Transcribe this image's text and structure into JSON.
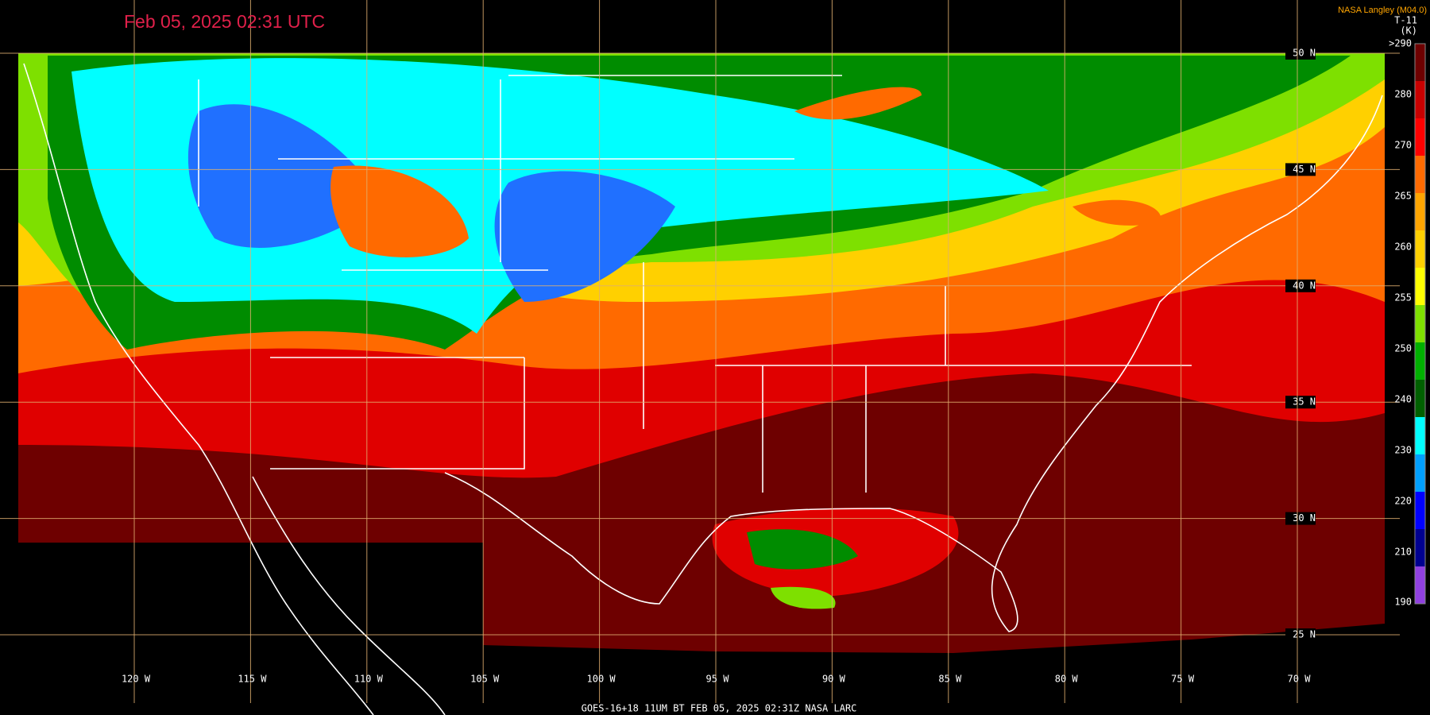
{
  "header": {
    "title": "Feb 05, 2025 02:31 UTC",
    "credit": "NASA Langley (M04.0)"
  },
  "colorbar": {
    "product": "T-11",
    "unit": "(K)",
    "ticks": [
      ">290",
      "280",
      "270",
      "265",
      "260",
      "255",
      "250",
      "240",
      "230",
      "220",
      "210",
      "190"
    ]
  },
  "grid": {
    "latitudes": [
      "50 N",
      "45 N",
      "40 N",
      "35 N",
      "30 N",
      "25 N"
    ],
    "longitudes": [
      "120 W",
      "115 W",
      "110 W",
      "105 W",
      "100 W",
      "95 W",
      "90 W",
      "85 W",
      "80 W",
      "75 W",
      "70 W"
    ]
  },
  "footer": "GOES-16+18  11UM BT   FEB 05, 2025 02:31Z   NASA LARC"
}
